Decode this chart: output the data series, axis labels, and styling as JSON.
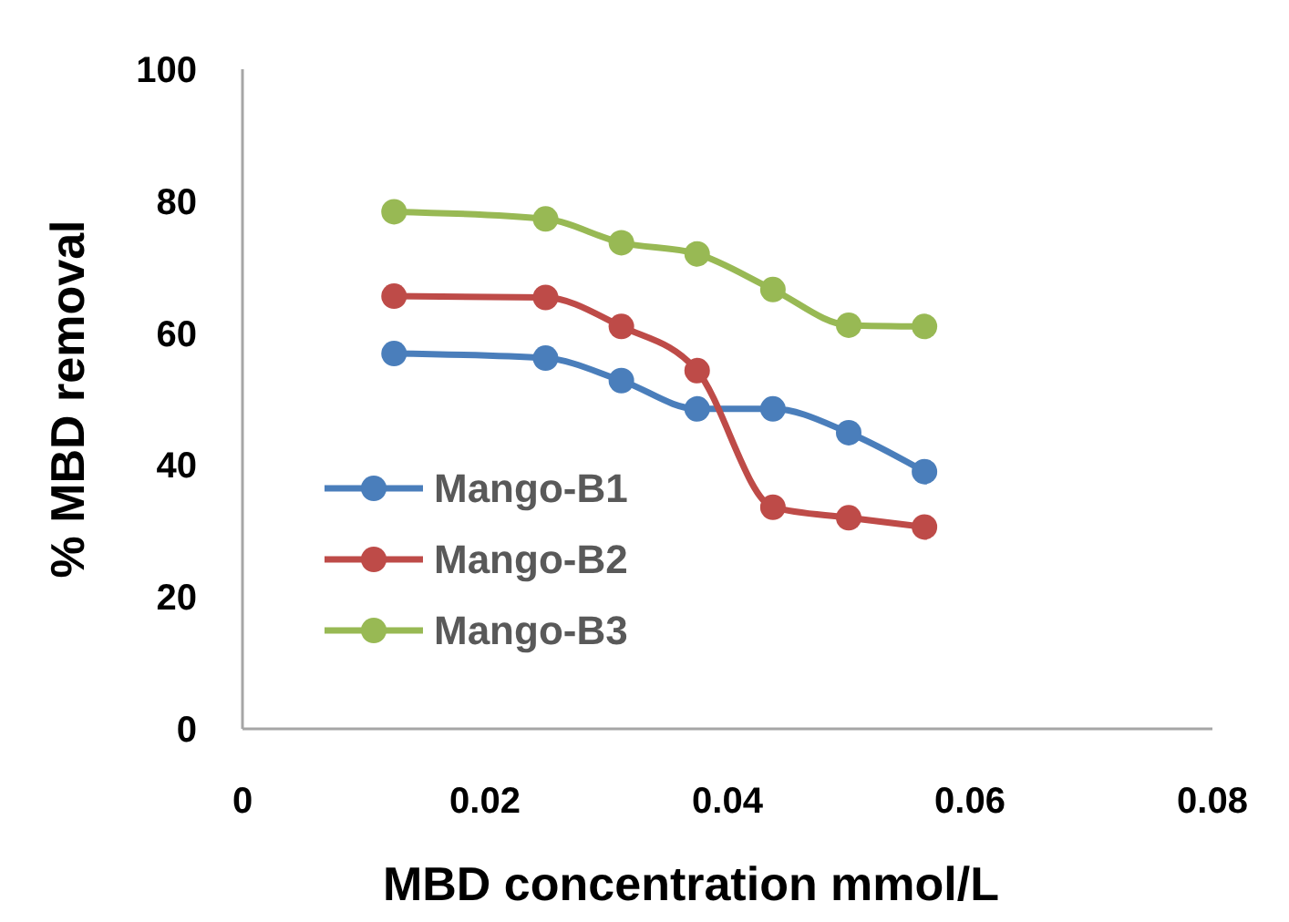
{
  "chart_data": {
    "type": "line",
    "xlabel": "MBD concentration mmol/L",
    "ylabel": "% MBD removal",
    "x": [
      0.0125,
      0.025,
      0.03125,
      0.0375,
      0.04375,
      0.05,
      0.05625
    ],
    "series": [
      {
        "name": "Mango-B1",
        "color": "#4a7ebb",
        "values": [
          56.9,
          56.2,
          52.8,
          48.5,
          48.5,
          44.9,
          39
        ]
      },
      {
        "name": "Mango-B2",
        "color": "#be4b48",
        "values": [
          65.6,
          65.4,
          61,
          54.3,
          33.6,
          32,
          30.6
        ]
      },
      {
        "name": "Mango-B3",
        "color": "#98b954",
        "values": [
          78.4,
          77.3,
          73.7,
          72,
          66.6,
          61.2,
          61
        ]
      }
    ],
    "xlim": [
      0,
      0.08
    ],
    "xticks": [
      0,
      0.02,
      0.04,
      0.06,
      0.08
    ],
    "ylim": [
      0,
      100
    ],
    "yticks": [
      0,
      20,
      40,
      60,
      80,
      100
    ],
    "grid": false,
    "legend": "left",
    "marker": "circle",
    "line_style": "solid"
  }
}
